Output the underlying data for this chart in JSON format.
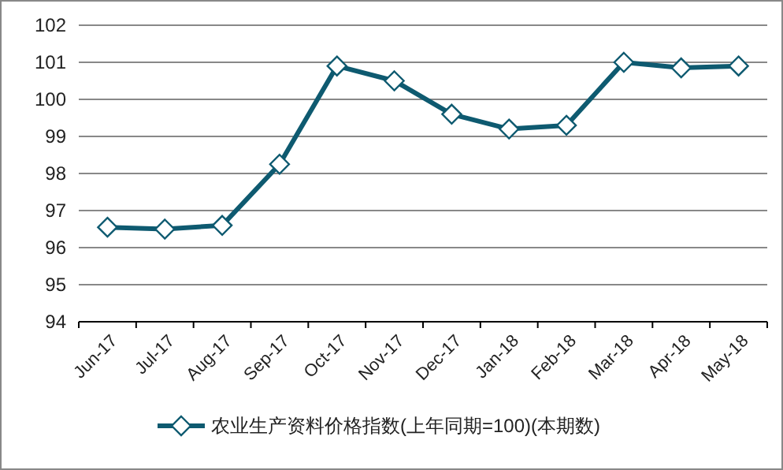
{
  "chart_data": {
    "type": "line",
    "categories": [
      "Jun-17",
      "Jul-17",
      "Aug-17",
      "Sep-17",
      "Oct-17",
      "Nov-17",
      "Dec-17",
      "Jan-18",
      "Feb-18",
      "Mar-18",
      "Apr-18",
      "May-18"
    ],
    "series": [
      {
        "name": "农业生产资料价格指数(上年同期=100)(本期数)",
        "color": "#0e5a70",
        "values": [
          96.55,
          96.5,
          96.6,
          98.25,
          100.9,
          100.5,
          99.6,
          99.2,
          99.3,
          101.0,
          100.85,
          100.9
        ]
      }
    ],
    "ylim": [
      94,
      102
    ],
    "yticks": [
      94,
      95,
      96,
      97,
      98,
      99,
      100,
      101,
      102
    ],
    "grid": "y",
    "legend": "bottom",
    "marker": "diamond",
    "line_style": "solid"
  }
}
